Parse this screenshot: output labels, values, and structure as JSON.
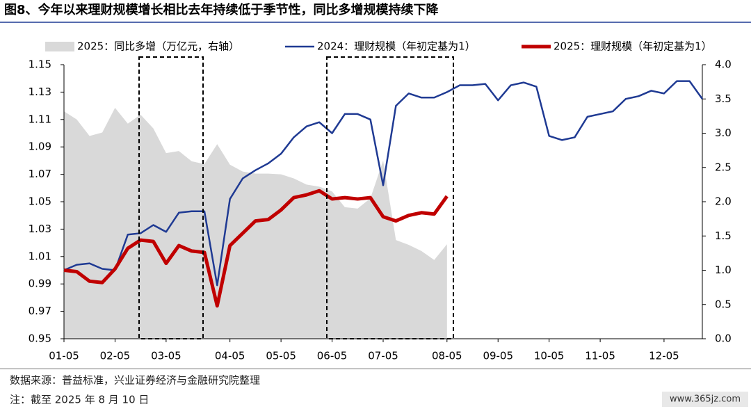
{
  "chart_data": {
    "type": "line",
    "title": "图8、今年以来理财规模增长相比去年持续低于季节性，同比多增规模持续下降",
    "categories": [
      "01-05",
      null,
      null,
      null,
      "02-05",
      null,
      null,
      null,
      "03-05",
      null,
      null,
      null,
      null,
      "04-05",
      null,
      null,
      null,
      "05-05",
      null,
      null,
      null,
      "06-05",
      null,
      null,
      null,
      "07-05",
      null,
      null,
      null,
      null,
      "08-05",
      null,
      null,
      null,
      "09-05",
      null,
      null,
      null,
      "10-05",
      null,
      null,
      null,
      "11-05",
      null,
      null,
      null,
      null,
      "12-05",
      null,
      null,
      null
    ],
    "series": [
      {
        "name": "2025：同比多增（万亿元，右轴）",
        "type": "area",
        "axis": "y2",
        "color": "#d9d9d9",
        "values": [
          3.32,
          3.2,
          2.96,
          3.01,
          3.37,
          3.14,
          3.27,
          3.07,
          2.71,
          2.74,
          2.59,
          2.55,
          2.84,
          2.54,
          2.44,
          2.41,
          2.41,
          2.4,
          2.34,
          2.25,
          2.22,
          2.15,
          1.92,
          1.9,
          2.05,
          2.6,
          1.44,
          1.37,
          1.28,
          1.15,
          1.38,
          null,
          null,
          null,
          null,
          null,
          null,
          null,
          null,
          null,
          null,
          null,
          null,
          null,
          null,
          null,
          null,
          null,
          null,
          null,
          null
        ]
      },
      {
        "name": "2024：理财规模（年初定基为1）",
        "type": "line",
        "color": "#1f3a93",
        "values": [
          1.0,
          1.004,
          1.005,
          1.001,
          1.0,
          1.026,
          1.027,
          1.033,
          1.028,
          1.042,
          1.043,
          1.043,
          0.989,
          1.052,
          1.067,
          1.073,
          1.078,
          1.085,
          1.097,
          1.105,
          1.108,
          1.1,
          1.114,
          1.114,
          1.11,
          1.062,
          1.12,
          1.129,
          1.126,
          1.126,
          1.13,
          1.135,
          1.135,
          1.136,
          1.124,
          1.135,
          1.137,
          1.134,
          1.098,
          1.095,
          1.097,
          1.112,
          1.114,
          1.116,
          1.125,
          1.127,
          1.131,
          1.129,
          1.138,
          1.138,
          1.125
        ]
      },
      {
        "name": "2025：理财规模（年初定基为1）",
        "type": "line",
        "color": "#c00000",
        "values": [
          1.0,
          0.999,
          0.992,
          0.991,
          1.001,
          1.016,
          1.022,
          1.021,
          1.005,
          1.018,
          1.014,
          1.013,
          0.974,
          1.018,
          1.027,
          1.036,
          1.037,
          1.044,
          1.053,
          1.055,
          1.058,
          1.052,
          1.053,
          1.052,
          1.053,
          1.039,
          1.036,
          1.04,
          1.042,
          1.041,
          1.054,
          null,
          null,
          null,
          null,
          null,
          null,
          null,
          null,
          null,
          null,
          null,
          null,
          null,
          null,
          null,
          null,
          null,
          null,
          null,
          null
        ]
      }
    ],
    "ylim": [
      0.95,
      1.15
    ],
    "yticks": [
      0.95,
      0.97,
      0.99,
      1.01,
      1.03,
      1.05,
      1.07,
      1.09,
      1.11,
      1.13,
      1.15
    ],
    "y2lim": [
      0,
      4
    ],
    "y2ticks": [
      {
        "value": 0,
        "label": "0.0"
      },
      0.5,
      {
        "value": 1,
        "label": "1.0"
      },
      1.5,
      {
        "value": 2,
        "label": "2.0"
      },
      2.5,
      {
        "value": 3,
        "label": "3.0"
      },
      3.5,
      {
        "value": 4,
        "label": "4.0"
      }
    ],
    "source": "数据来源：普益标准，兴业证券经济与金融研究院整理",
    "note": "注：截至 2025 年 8 月 10 日",
    "watermark": "www.365jz.com"
  }
}
